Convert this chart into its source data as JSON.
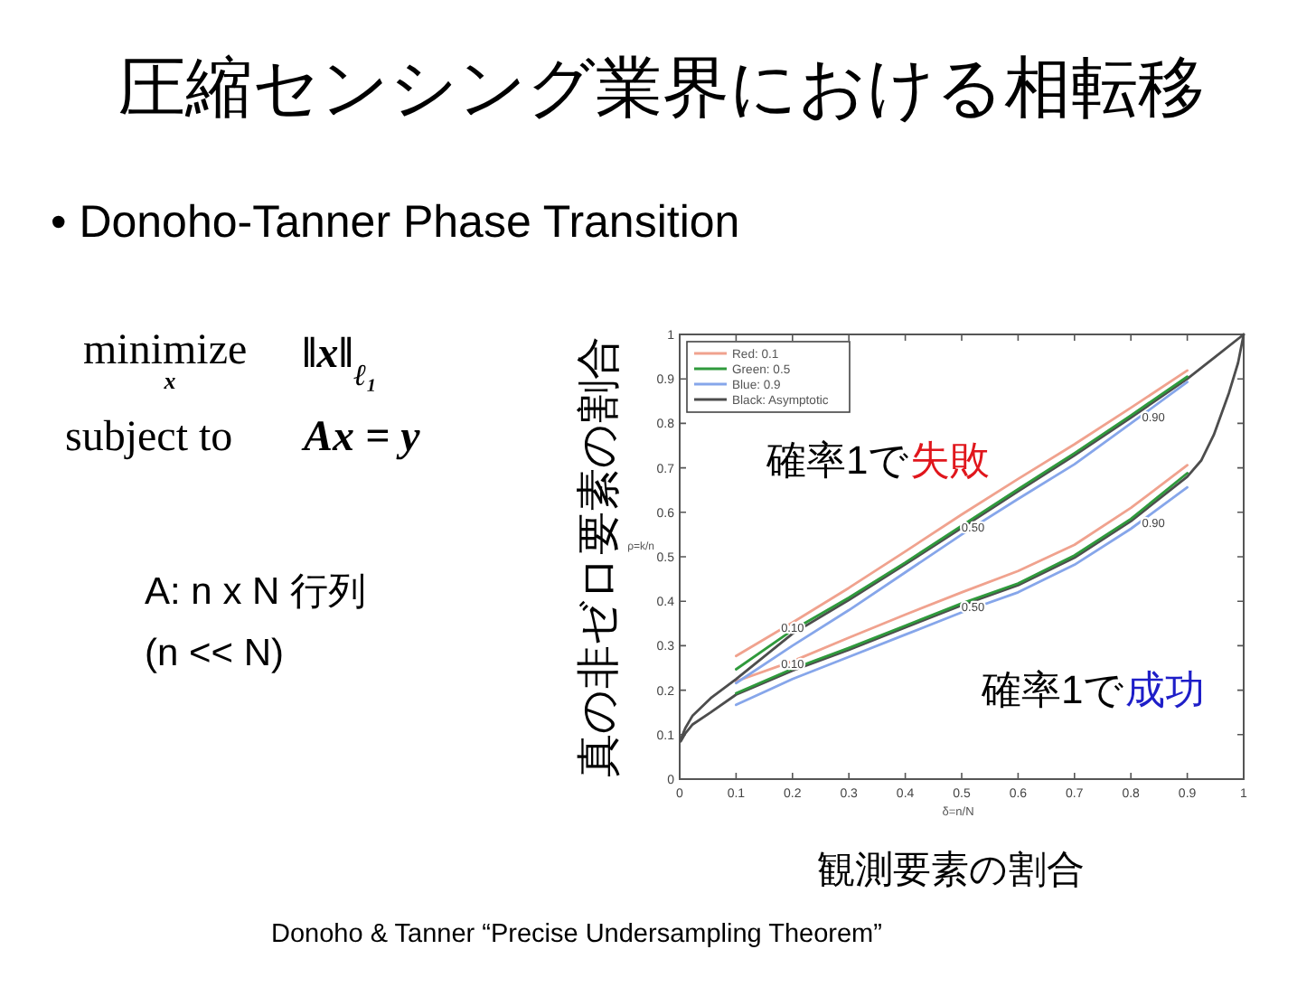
{
  "chart_data": {
    "type": "line",
    "title": "圧縮センシング業界における相転移",
    "subtitle": "• Donoho-Tanner Phase Transition",
    "xlabel": "観測要素の割合",
    "ylabel": "真の非ゼロ要素の割合",
    "xlim": [
      0,
      1
    ],
    "ylim": [
      0,
      1
    ],
    "xticks": [
      0,
      0.1,
      0.2,
      0.3,
      0.4,
      0.5,
      0.6,
      0.7,
      0.8,
      0.9,
      1
    ],
    "yticks": [
      0,
      0.1,
      0.2,
      0.3,
      0.4,
      0.5,
      0.6,
      0.7,
      0.8,
      0.9,
      1
    ],
    "legend": "top left",
    "series": [
      {
        "name": "Red: 0.1",
        "color": "#f0a28e",
        "x": [
          0.1,
          0.2,
          0.3,
          0.4,
          0.5,
          0.6,
          0.7,
          0.8,
          0.9
        ],
        "values": [
          0.277,
          0.352,
          0.43,
          0.512,
          0.595,
          0.675,
          0.753,
          0.835,
          0.919
        ]
      },
      {
        "name": "Green: 0.5",
        "color": "#2f9a3c",
        "x": [
          0.1,
          0.2,
          0.3,
          0.4,
          0.5,
          0.6,
          0.7,
          0.8,
          0.9
        ],
        "values": [
          0.247,
          0.335,
          0.408,
          0.487,
          0.57,
          0.652,
          0.733,
          0.818,
          0.905
        ]
      },
      {
        "name": "Blue: 0.9",
        "color": "#86a6ea",
        "x": [
          0.1,
          0.2,
          0.3,
          0.4,
          0.5,
          0.6,
          0.7,
          0.8,
          0.9
        ],
        "values": [
          0.216,
          0.3,
          0.38,
          0.465,
          0.55,
          0.63,
          0.708,
          0.8,
          0.893
        ]
      },
      {
        "name": "Black: Asymptotic",
        "color": "#4d4d4d",
        "x": [
          0.002,
          0.01,
          0.023,
          0.055,
          0.1,
          0.2,
          0.3,
          0.4,
          0.5,
          0.6,
          0.7,
          0.8,
          0.9,
          0.95,
          1
        ],
        "values": [
          0.09,
          0.115,
          0.143,
          0.182,
          0.225,
          0.327,
          0.403,
          0.483,
          0.565,
          0.647,
          0.728,
          0.813,
          0.9,
          0.95,
          1
        ]
      },
      {
        "color": "#f0a28e",
        "x": [
          0.1,
          0.2,
          0.3,
          0.4,
          0.5,
          0.6,
          0.7,
          0.8,
          0.9
        ],
        "values": [
          0.22,
          0.265,
          0.318,
          0.37,
          0.42,
          0.468,
          0.527,
          0.61,
          0.706
        ]
      },
      {
        "color": "#2f9a3c",
        "x": [
          0.1,
          0.2,
          0.3,
          0.4,
          0.5,
          0.6,
          0.7,
          0.8,
          0.9
        ],
        "values": [
          0.193,
          0.248,
          0.295,
          0.345,
          0.395,
          0.44,
          0.503,
          0.585,
          0.688
        ]
      },
      {
        "color": "#86a6ea",
        "x": [
          0.1,
          0.2,
          0.3,
          0.4,
          0.5,
          0.6,
          0.7,
          0.8,
          0.9
        ],
        "values": [
          0.167,
          0.225,
          0.275,
          0.325,
          0.375,
          0.42,
          0.482,
          0.563,
          0.656
        ]
      },
      {
        "color": "#4d4d4d",
        "x": [
          0.002,
          0.01,
          0.023,
          0.055,
          0.1,
          0.2,
          0.3,
          0.4,
          0.5,
          0.6,
          0.7,
          0.8,
          0.9,
          0.925,
          0.947,
          0.974,
          0.99,
          1
        ],
        "values": [
          0.085,
          0.103,
          0.123,
          0.15,
          0.19,
          0.244,
          0.291,
          0.341,
          0.391,
          0.436,
          0.498,
          0.58,
          0.68,
          0.717,
          0.774,
          0.869,
          0.936,
          1
        ]
      }
    ],
    "annotations": [
      "minimize",
      "x",
      "‖x‖$_{ℓ₁}$",
      "subject to",
      "Ax = y",
      "A: n x N 行列",
      "(n << N)",
      "ρ=k/n",
      "δ=n/N",
      "Donoho & Tanner “Precise Undersampling Theorem”",
      "確率1で失敗",
      "確率1で成功",
      {
        "text": "0.10",
        "x": 0.2,
        "y": 0.34
      },
      {
        "text": "0.50",
        "x": 0.52,
        "y": 0.566
      },
      {
        "text": "0.90",
        "x": 0.84,
        "y": 0.815
      },
      {
        "text": "0.10",
        "x": 0.2,
        "y": 0.26
      },
      {
        "text": "0.50",
        "x": 0.52,
        "y": 0.387
      },
      {
        "text": "0.90",
        "x": 0.84,
        "y": 0.576
      }
    ]
  }
}
